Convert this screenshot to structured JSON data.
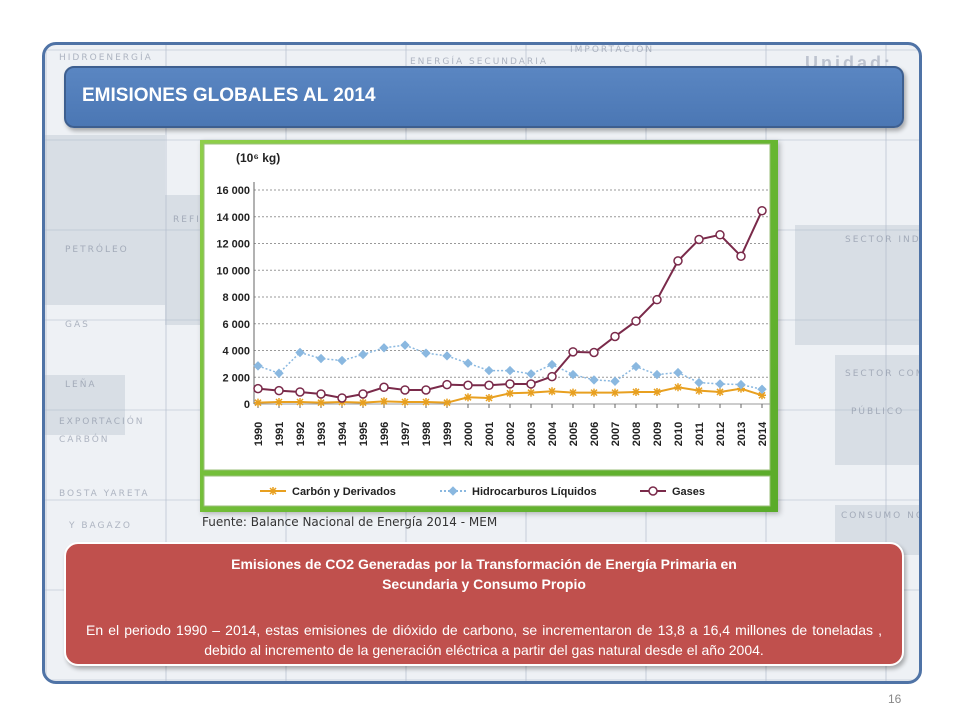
{
  "slide": {
    "title": "EMISIONES GLOBALES AL 2014",
    "source": "Fuente: Balance Nacional de Energía 2014 - MEM",
    "page_number": "16"
  },
  "info_box": {
    "heading_line1": "Emisiones de CO2 Generadas por la Transformación de Energía Primaria en",
    "heading_line2": "Secundaria y  Consumo Propio",
    "body": "En el periodo 1990 – 2014, estas emisiones de dióxido de carbono, se incrementaron de 13,8 a 16,4 millones de toneladas , debido al incremento de la generación eléctrica a partir del gas natural desde el año 2004."
  },
  "background": {
    "labels": [
      "HIDROENERGÍA",
      "ENERGÍA SECUNDARIA",
      "IMPORTACIÓN",
      "PETRÓLEO",
      "REFINE",
      "GAS",
      "LEÑA",
      "EXPORTACIÓN",
      "CARBÓN",
      "BOSTA YARETA",
      "Y BAGAZO",
      "SECTOR INDUSTRIAL",
      "SECTOR COMERCIAL RESIDENCIAL",
      "PÚBLICO",
      "CONSUMO NO ENERGÉTICO"
    ],
    "unit": "Unidad: TJ"
  },
  "colors": {
    "title_bar": "#4f7ab8",
    "info_box": "#c0504d",
    "chart_bg": "#6bb934",
    "carbon": "#e8a020",
    "hidrocarburos": "#8ab8e0",
    "gases": "#7a2a4a"
  },
  "chart_data": {
    "type": "line",
    "unit_label": "(10⁶ kg)",
    "x": [
      "1990",
      "1991",
      "1992",
      "1993",
      "1994",
      "1995",
      "1996",
      "1997",
      "1998",
      "1999",
      "2000",
      "2001",
      "2002",
      "2003",
      "2004",
      "2005",
      "2006",
      "2007",
      "2008",
      "2009",
      "2010",
      "2011",
      "2012",
      "2013",
      "2014"
    ],
    "ylim": [
      0,
      16000
    ],
    "yticks": [
      "0",
      "2 000",
      "4 000",
      "6 000",
      "8 000",
      "10 000",
      "12 000",
      "14 000",
      "16 000"
    ],
    "grid": true,
    "legend_position": "bottom",
    "series": [
      {
        "name": "Carbón y Derivados",
        "marker": "star",
        "values": [
          100,
          150,
          150,
          100,
          150,
          100,
          200,
          150,
          150,
          100,
          500,
          450,
          800,
          850,
          950,
          850,
          850,
          850,
          900,
          900,
          1250,
          1000,
          900,
          1150,
          650
        ]
      },
      {
        "name": "Hidrocarburos Líquidos",
        "marker": "diamond",
        "values": [
          2850,
          2300,
          3850,
          3400,
          3250,
          3700,
          4200,
          4400,
          3800,
          3600,
          3050,
          2500,
          2500,
          2250,
          2950,
          2200,
          1800,
          1700,
          2800,
          2200,
          2350,
          1600,
          1500,
          1450,
          1100
        ]
      },
      {
        "name": "Gases",
        "marker": "circle",
        "values": [
          1150,
          1000,
          900,
          750,
          450,
          750,
          1250,
          1050,
          1050,
          1450,
          1400,
          1400,
          1500,
          1500,
          2050,
          3900,
          3850,
          5050,
          6200,
          7800,
          10700,
          12300,
          12650,
          11050,
          14450
        ]
      }
    ]
  }
}
